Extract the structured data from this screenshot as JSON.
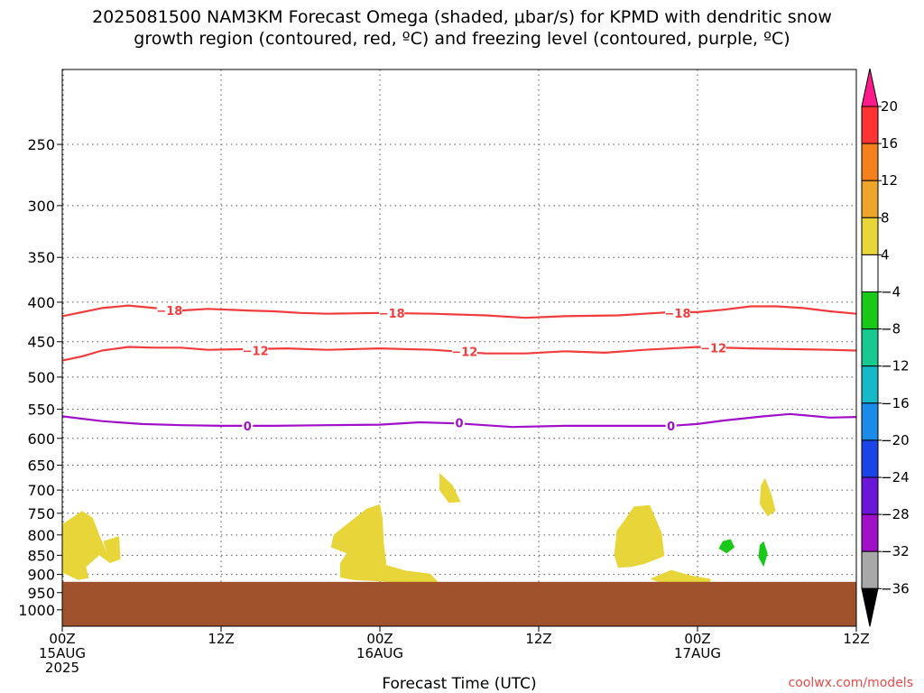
{
  "chart_data": {
    "type": "heatmap",
    "title_line1": "2025081500 NAM3KM Forecast Omega (shaded, μbar/s) for KPMD with dendritic snow",
    "title_line2": "growth region (contoured, red, ºC) and freezing level (contoured, purple, ºC)",
    "xlabel": "Forecast Time (UTC)",
    "footer": "coolwx.com/models",
    "y_axis": {
      "scale": "log-pressure",
      "range_hPa": [
        1050,
        200
      ],
      "inverted": true,
      "ticks": [
        250,
        300,
        350,
        400,
        450,
        500,
        550,
        600,
        650,
        700,
        750,
        800,
        850,
        900,
        950,
        1000
      ]
    },
    "x_axis": {
      "range_hours": [
        0,
        60
      ],
      "ticks": [
        {
          "hour": 0,
          "line1": "00Z",
          "line2": "15AUG",
          "line3": "2025"
        },
        {
          "hour": 12,
          "line1": "12Z",
          "line2": "",
          "line3": ""
        },
        {
          "hour": 24,
          "line1": "00Z",
          "line2": "16AUG",
          "line3": ""
        },
        {
          "hour": 36,
          "line1": "12Z",
          "line2": "",
          "line3": ""
        },
        {
          "hour": 48,
          "line1": "00Z",
          "line2": "17AUG",
          "line3": ""
        },
        {
          "hour": 60,
          "line1": "12Z",
          "line2": "",
          "line3": ""
        }
      ]
    },
    "grid": true,
    "ground": {
      "pressure_hPa": 920,
      "color": "#a0522d"
    },
    "colorbar": {
      "placement": "right",
      "labels": [
        "20",
        "16",
        "12",
        "8",
        "4",
        "−4",
        "−8",
        "−12",
        "−16",
        "−20",
        "−24",
        "−28",
        "−32",
        "−36"
      ],
      "colors": [
        "#ff1a8c",
        "#ff3333",
        "#f5801e",
        "#eda62b",
        "#e8d53a",
        "#ffffff",
        "#1ac81a",
        "#17c88f",
        "#17b8c8",
        "#1a8ce8",
        "#1a44e8",
        "#6a17d8",
        "#a010c8",
        "#a8a8a8",
        "#000000"
      ]
    },
    "contours": [
      {
        "name": "-18",
        "label": "−18",
        "color": "#f03c3c",
        "points": [
          [
            0,
            417
          ],
          [
            3,
            407
          ],
          [
            5,
            404
          ],
          [
            7,
            407
          ],
          [
            9,
            410
          ],
          [
            11,
            408
          ],
          [
            14,
            410
          ],
          [
            16,
            411
          ],
          [
            18,
            413
          ],
          [
            20,
            414
          ],
          [
            24,
            413
          ],
          [
            28,
            414
          ],
          [
            32,
            416
          ],
          [
            35,
            419
          ],
          [
            38,
            417
          ],
          [
            42,
            416
          ],
          [
            44,
            414
          ],
          [
            46,
            412
          ],
          [
            48,
            412
          ],
          [
            50,
            409
          ],
          [
            52,
            405
          ],
          [
            54,
            405
          ],
          [
            56,
            407
          ],
          [
            58,
            411
          ],
          [
            60,
            414
          ]
        ],
        "label_at": [
          [
            8.1,
            410
          ],
          [
            24.9,
            413
          ],
          [
            46.5,
            413
          ]
        ]
      },
      {
        "name": "-12",
        "label": "−12",
        "color": "#f03c3c",
        "points": [
          [
            0,
            476
          ],
          [
            1.5,
            470
          ],
          [
            3,
            462
          ],
          [
            5,
            457
          ],
          [
            7,
            458
          ],
          [
            9,
            458
          ],
          [
            11,
            461
          ],
          [
            14,
            460
          ],
          [
            17,
            459
          ],
          [
            20,
            461
          ],
          [
            24,
            459
          ],
          [
            28,
            461
          ],
          [
            32,
            466
          ],
          [
            35,
            466
          ],
          [
            38,
            463
          ],
          [
            41,
            465
          ],
          [
            44,
            461
          ],
          [
            48,
            457
          ],
          [
            52,
            459
          ],
          [
            55,
            460
          ],
          [
            58,
            461
          ],
          [
            60,
            462
          ]
        ],
        "label_at": [
          [
            14.6,
            462
          ],
          [
            30.4,
            463
          ],
          [
            49.2,
            458
          ]
        ]
      },
      {
        "name": "0",
        "label": "0",
        "color": "#a010c8",
        "points": [
          [
            0,
            562
          ],
          [
            3,
            570
          ],
          [
            6,
            575
          ],
          [
            9,
            577
          ],
          [
            12,
            578
          ],
          [
            16,
            578
          ],
          [
            20,
            577
          ],
          [
            24,
            576
          ],
          [
            27,
            572
          ],
          [
            30,
            574
          ],
          [
            34,
            580
          ],
          [
            38,
            578
          ],
          [
            42,
            578
          ],
          [
            46,
            578
          ],
          [
            48,
            575
          ],
          [
            50,
            569
          ],
          [
            53,
            562
          ],
          [
            55,
            558
          ],
          [
            58,
            564
          ],
          [
            60,
            563
          ]
        ],
        "label_at": [
          [
            14.0,
            578
          ],
          [
            30.0,
            573
          ],
          [
            46.0,
            578
          ]
        ]
      }
    ],
    "shaded_regions": [
      {
        "name": "omega-pos-1",
        "value": "4 to 8",
        "color": "#e8d53a",
        "points": [
          [
            0,
            775
          ],
          [
            1.5,
            745
          ],
          [
            2.3,
            760
          ],
          [
            2.8,
            800
          ],
          [
            3.2,
            830
          ],
          [
            3.4,
            848
          ],
          [
            3.1,
            815
          ],
          [
            4.3,
            803
          ],
          [
            4.4,
            860
          ],
          [
            3.6,
            870
          ],
          [
            2.8,
            850
          ],
          [
            1.8,
            880
          ],
          [
            2.0,
            910
          ],
          [
            1.2,
            915
          ],
          [
            0,
            895
          ]
        ]
      },
      {
        "name": "omega-pos-2",
        "value": "4 to 8",
        "color": "#e8d53a",
        "points": [
          [
            20.5,
            800
          ],
          [
            21.5,
            775
          ],
          [
            23,
            740
          ],
          [
            24.0,
            730
          ],
          [
            24.2,
            760
          ],
          [
            24.3,
            820
          ],
          [
            24.5,
            875
          ],
          [
            26,
            890
          ],
          [
            27.8,
            898
          ],
          [
            28.4,
            920
          ],
          [
            27,
            925
          ],
          [
            24.5,
            920
          ],
          [
            22,
            915
          ],
          [
            21,
            908
          ],
          [
            21.0,
            870
          ],
          [
            21.5,
            845
          ],
          [
            20.3,
            830
          ]
        ]
      },
      {
        "name": "omega-pos-3",
        "value": "4 to 8",
        "color": "#e8d53a",
        "points": [
          [
            28.5,
            665
          ],
          [
            29.5,
            690
          ],
          [
            30.1,
            725
          ],
          [
            29.2,
            727
          ],
          [
            28.5,
            700
          ]
        ]
      },
      {
        "name": "omega-pos-4",
        "value": "4 to 8",
        "color": "#e8d53a",
        "points": [
          [
            41.9,
            790
          ],
          [
            42.5,
            765
          ],
          [
            43.2,
            735
          ],
          [
            44.4,
            732
          ],
          [
            45.3,
            795
          ],
          [
            45.5,
            852
          ],
          [
            44.0,
            872
          ],
          [
            43.0,
            880
          ],
          [
            42.0,
            882
          ],
          [
            41.7,
            850
          ]
        ]
      },
      {
        "name": "omega-pos-5",
        "value": "4 to 8",
        "color": "#e8d53a",
        "points": [
          [
            44.4,
            912
          ],
          [
            46.0,
            888
          ],
          [
            47.4,
            902
          ],
          [
            49.0,
            912
          ],
          [
            48.9,
            925
          ],
          [
            47.0,
            925
          ],
          [
            45.0,
            920
          ]
        ]
      },
      {
        "name": "omega-pos-6",
        "value": "4 to 8",
        "color": "#e8d53a",
        "points": [
          [
            53.1,
            675
          ],
          [
            53.6,
            710
          ],
          [
            53.9,
            745
          ],
          [
            53.3,
            757
          ],
          [
            52.7,
            730
          ],
          [
            52.8,
            690
          ]
        ]
      },
      {
        "name": "omega-neg-1",
        "value": "-4 to -8",
        "color": "#1ac81a",
        "points": [
          [
            49.9,
            815
          ],
          [
            50.5,
            810
          ],
          [
            50.8,
            830
          ],
          [
            50.2,
            845
          ],
          [
            49.6,
            833
          ]
        ]
      },
      {
        "name": "omega-neg-2",
        "value": "-4 to -8",
        "color": "#1ac81a",
        "points": [
          [
            52.7,
            825
          ],
          [
            53.0,
            815
          ],
          [
            53.3,
            845
          ],
          [
            53.0,
            880
          ],
          [
            52.6,
            855
          ]
        ]
      }
    ]
  }
}
